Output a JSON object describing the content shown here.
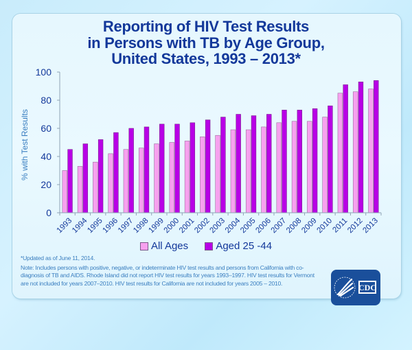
{
  "chart_data": {
    "type": "bar",
    "title": "Reporting of HIV Test Results in Persons with TB by Age Group, United States, 1993 – 2013*",
    "title_lines": [
      "Reporting of HIV Test Results",
      "in Persons with TB by Age Group,",
      "United States, 1993 – 2013*"
    ],
    "xlabel": "",
    "ylabel": "% with Test Results",
    "ylim": [
      0,
      100
    ],
    "yticks": [
      0,
      20,
      40,
      60,
      80,
      100
    ],
    "grid": false,
    "legend_position": "bottom",
    "categories": [
      "1993",
      "1994",
      "1995",
      "1996",
      "1997",
      "1998",
      "1999",
      "2000",
      "2001",
      "2002",
      "2003",
      "2004",
      "2005",
      "2006",
      "2007",
      "2008",
      "2009",
      "2010",
      "2011",
      "2012",
      "2013"
    ],
    "series": [
      {
        "name": "All Ages",
        "color": "#f7a1ef",
        "values": [
          30,
          33,
          36,
          42,
          45,
          46,
          49,
          50,
          51,
          54,
          55,
          59,
          59,
          61,
          64,
          65,
          65,
          68,
          85,
          86,
          88
        ]
      },
      {
        "name": "Aged 25 -44",
        "color": "#b800e6",
        "values": [
          45,
          49,
          52,
          57,
          60,
          61,
          63,
          63,
          64,
          66,
          68,
          70,
          69,
          70,
          73,
          73,
          74,
          76,
          91,
          93,
          94
        ]
      }
    ]
  },
  "footnote": {
    "updated": "*Updated as of June 11, 2014.",
    "note": "Note: Includes persons with positive, negative, or indeterminate HIV test results and persons from California with co-diagnosis of TB and AIDS. Rhode Island did not report HIV test results for years 1993–1997. HIV test results for Vermont are not included for years 2007–2010. HIV test results for California are not included for years 2005 – 2010."
  },
  "logo": {
    "text": "CDC",
    "icon": "hhs-eagle-icon"
  },
  "colors": {
    "title": "#13389a",
    "axis_text": "#13389a",
    "ylabel": "#3b7fc0",
    "logo_bg": "#1a4f9b"
  }
}
